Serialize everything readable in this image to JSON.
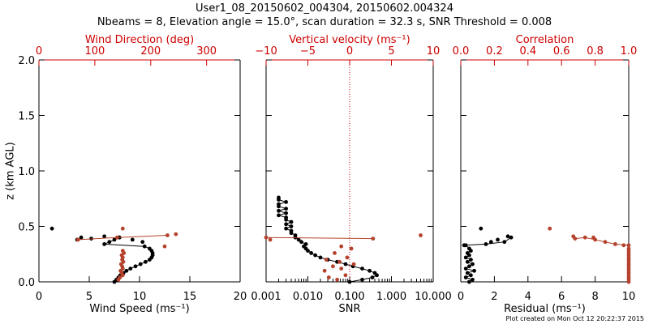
{
  "figure": {
    "title_line1": "User1_08_20150602_004304, 20150602.004324",
    "title_line2": "Nbeams = 8, Elevation angle = 15.0°, scan duration = 32.3 s, SNR Threshold = 0.008",
    "credit": "Plot created on Mon Oct 12 20:22:37 2015",
    "colors": {
      "axis": "#000000",
      "secondary": "#cc0000",
      "black_series": "#000000",
      "red_series": "#b5422c"
    }
  },
  "chart_data": [
    {
      "type": "scatter",
      "ylabel": "z (km AGL)",
      "ylim": [
        0,
        2
      ],
      "yticks": [
        "0.0",
        "0.5",
        "1.0",
        "1.5",
        "2.0"
      ],
      "xlabel": "Wind Speed (ms⁻¹)",
      "xlim": [
        0,
        20
      ],
      "xticks": [
        "0",
        "5",
        "10",
        "15",
        "20"
      ],
      "top_label": "Wind Direction (deg)",
      "top_lim": [
        0,
        360
      ],
      "top_ticks": [
        "0",
        "100",
        "200",
        "300"
      ],
      "grid": false,
      "series": [
        {
          "axis": "bottom",
          "color": "black_series",
          "style": "line+dots",
          "x": [
            7.5,
            7.7,
            7.9,
            8.1,
            8.4,
            8.7,
            9.1,
            9.6,
            10.1,
            10.6,
            11.0,
            11.2,
            11.3,
            11.3,
            11.2,
            11.0,
            10.5,
            6.5,
            7.0,
            7.5,
            8.0
          ],
          "y": [
            0.0,
            0.02,
            0.04,
            0.06,
            0.08,
            0.1,
            0.12,
            0.14,
            0.16,
            0.18,
            0.2,
            0.22,
            0.24,
            0.26,
            0.28,
            0.3,
            0.32,
            0.34,
            0.36,
            0.38,
            0.4
          ]
        },
        {
          "axis": "bottom",
          "color": "black_series",
          "style": "dots",
          "x": [
            1.3,
            3.8,
            4.2,
            5.2,
            6.5,
            8.0,
            9.3,
            10.3
          ],
          "y": [
            0.48,
            0.38,
            0.4,
            0.39,
            0.41,
            0.4,
            0.38,
            0.36
          ]
        },
        {
          "axis": "top",
          "color": "red_series",
          "style": "dots",
          "x": [
            142,
            145,
            150,
            148,
            146,
            150,
            149,
            147,
            151,
            149,
            150,
            148,
            152,
            150
          ],
          "y": [
            0.02,
            0.04,
            0.06,
            0.08,
            0.1,
            0.12,
            0.14,
            0.16,
            0.18,
            0.2,
            0.22,
            0.24,
            0.26,
            0.28
          ]
        },
        {
          "axis": "top",
          "color": "red_series",
          "style": "line+dots",
          "x": [
            70,
            140,
            230
          ],
          "y": [
            0.38,
            0.4,
            0.42
          ]
        },
        {
          "axis": "top",
          "color": "red_series",
          "style": "dots",
          "x": [
            150,
            245,
            225
          ],
          "y": [
            0.48,
            0.43,
            0.32
          ]
        }
      ]
    },
    {
      "type": "scatter",
      "xlabel": "SNR",
      "xscale": "log",
      "xlim": [
        0.001,
        10
      ],
      "xticks": [
        0.001,
        0.01,
        0.1,
        1,
        10
      ],
      "xticklabels": [
        "0.001",
        "0.010",
        "0.100",
        "1.000",
        "10.000"
      ],
      "ylim": [
        0,
        2
      ],
      "top_label": "Vertical velocity (ms⁻¹)",
      "top_lim": [
        -10,
        10
      ],
      "top_ticks": [
        "−10",
        "−5",
        "0",
        "5",
        "10"
      ],
      "zero_reference": "dotted vertical line at vertical velocity 0",
      "grid": false,
      "series": [
        {
          "axis": "bottom",
          "color": "black_series",
          "style": "line+dots",
          "x": [
            0.1,
            0.2,
            0.35,
            0.45,
            0.4,
            0.3,
            0.2,
            0.12,
            0.08,
            0.05,
            0.03,
            0.02,
            0.015,
            0.012,
            0.01,
            0.009,
            0.008,
            0.009,
            0.007,
            0.006,
            0.005,
            0.005,
            0.004,
            0.004,
            0.003,
            0.004,
            0.003,
            0.004,
            0.003,
            0.003,
            0.002,
            0.003,
            0.002,
            0.003,
            0.002,
            0.002,
            0.003,
            0.002,
            0.002
          ],
          "y": [
            0.0,
            0.02,
            0.04,
            0.06,
            0.08,
            0.1,
            0.12,
            0.14,
            0.16,
            0.18,
            0.2,
            0.22,
            0.24,
            0.26,
            0.28,
            0.3,
            0.32,
            0.34,
            0.36,
            0.38,
            0.4,
            0.42,
            0.44,
            0.46,
            0.48,
            0.5,
            0.52,
            0.54,
            0.56,
            0.58,
            0.6,
            0.62,
            0.64,
            0.66,
            0.68,
            0.7,
            0.72,
            0.74,
            0.76
          ]
        },
        {
          "axis": "top",
          "color": "red_series",
          "style": "dots",
          "x": [
            -1.5,
            -2.5,
            -0.5,
            -3.0,
            -1.0,
            -2.0,
            0.5,
            -1.2,
            -2.8,
            -0.3,
            -1.8,
            0.2,
            -1.0
          ],
          "y": [
            0.02,
            0.04,
            0.06,
            0.1,
            0.12,
            0.14,
            0.16,
            0.18,
            0.2,
            0.22,
            0.26,
            0.3,
            0.32
          ]
        },
        {
          "axis": "top",
          "color": "red_series",
          "style": "line+dots",
          "x": [
            -10,
            2.8
          ],
          "y": [
            0.4,
            0.39
          ]
        },
        {
          "axis": "top",
          "color": "red_series",
          "style": "dots",
          "x": [
            -9.5,
            8.5
          ],
          "y": [
            0.38,
            0.42
          ]
        }
      ]
    },
    {
      "type": "scatter",
      "xlabel": "Residual (ms⁻¹)",
      "xlim": [
        0,
        10
      ],
      "xticks": [
        "0",
        "2",
        "4",
        "6",
        "8",
        "10"
      ],
      "ylim": [
        0,
        2
      ],
      "top_label": "Correlation",
      "top_lim": [
        0,
        1
      ],
      "top_ticks": [
        "0.0",
        "0.2",
        "0.4",
        "0.6",
        "0.8",
        "1.0"
      ],
      "grid": false,
      "series": [
        {
          "axis": "bottom",
          "color": "black_series",
          "style": "line+dots",
          "x": [
            0.5,
            0.7,
            0.3,
            0.6,
            0.4,
            0.8,
            0.3,
            0.5,
            0.7,
            0.4,
            0.6,
            0.3,
            0.5,
            0.4,
            0.6,
            0.5,
            0.3
          ],
          "y": [
            0.0,
            0.02,
            0.04,
            0.06,
            0.08,
            0.1,
            0.12,
            0.14,
            0.16,
            0.18,
            0.2,
            0.22,
            0.24,
            0.26,
            0.28,
            0.3,
            0.33
          ]
        },
        {
          "axis": "bottom",
          "color": "black_series",
          "style": "line+dots",
          "x": [
            0.2,
            1.5,
            2.6,
            3.0
          ],
          "y": [
            0.33,
            0.34,
            0.36,
            0.4
          ]
        },
        {
          "axis": "bottom",
          "color": "black_series",
          "style": "dots",
          "x": [
            1.2,
            2.2,
            2.8,
            1.8
          ],
          "y": [
            0.48,
            0.38,
            0.41,
            0.36
          ]
        },
        {
          "axis": "top",
          "color": "red_series",
          "style": "line+dots",
          "x": [
            1.0,
            1.0,
            1.0,
            1.0,
            1.0,
            1.0,
            1.0,
            1.0,
            1.0,
            1.0,
            1.0,
            1.0,
            1.0,
            1.0,
            1.0,
            1.0
          ],
          "y": [
            0.0,
            0.02,
            0.04,
            0.06,
            0.08,
            0.1,
            0.12,
            0.14,
            0.16,
            0.18,
            0.2,
            0.22,
            0.24,
            0.26,
            0.28,
            0.3
          ]
        },
        {
          "axis": "top",
          "color": "red_series",
          "style": "line+dots",
          "x": [
            0.68,
            0.74,
            0.8,
            0.86,
            0.92,
            1.0
          ],
          "y": [
            0.39,
            0.4,
            0.38,
            0.36,
            0.34,
            0.33
          ]
        },
        {
          "axis": "top",
          "color": "red_series",
          "style": "dots",
          "x": [
            0.53,
            0.67,
            0.79,
            0.97
          ],
          "y": [
            0.48,
            0.41,
            0.4,
            0.33
          ]
        }
      ]
    }
  ]
}
